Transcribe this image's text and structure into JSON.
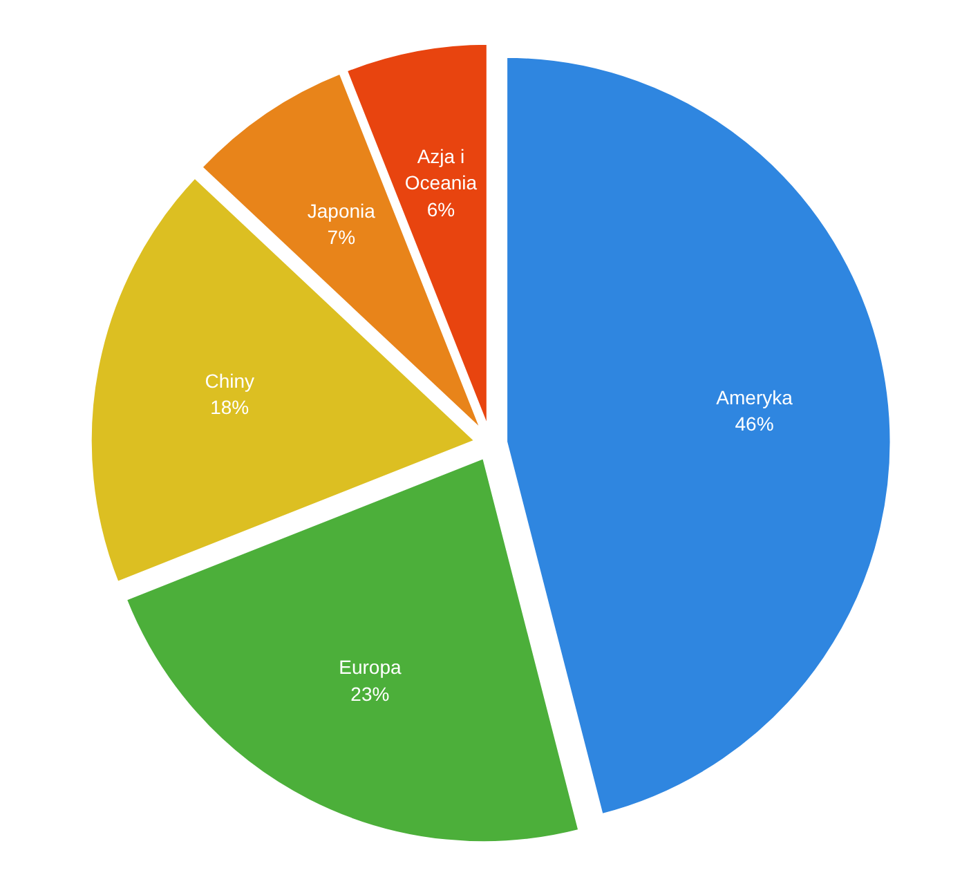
{
  "chart_data": {
    "type": "pie",
    "categories": [
      "Ameryka",
      "Europa",
      "Chiny",
      "Japonia",
      "Azja i Oceania"
    ],
    "values": [
      46,
      23,
      18,
      7,
      6
    ],
    "value_labels": [
      "46%",
      "23%",
      "18%",
      "7%",
      "6%"
    ],
    "colors": [
      "#2f86e0",
      "#4caf3a",
      "#dcbf22",
      "#e8841a",
      "#e8440f"
    ],
    "legend": false
  }
}
